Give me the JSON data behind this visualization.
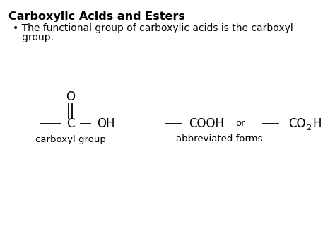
{
  "title": "Carboxylic Acids and Esters",
  "bullet_line1": "• The functional group of carboxylic acids is the carboxyl",
  "bullet_line2": "   group.",
  "bg_color": "#ffffff",
  "text_color": "#000000",
  "title_fontsize": 11.5,
  "bullet_fontsize": 10,
  "chem_fontsize": 12,
  "label_fontsize": 9.5,
  "carboxyl_label": "carboxyl group",
  "abbrev_label": "abbreviated forms",
  "or_text": "or"
}
